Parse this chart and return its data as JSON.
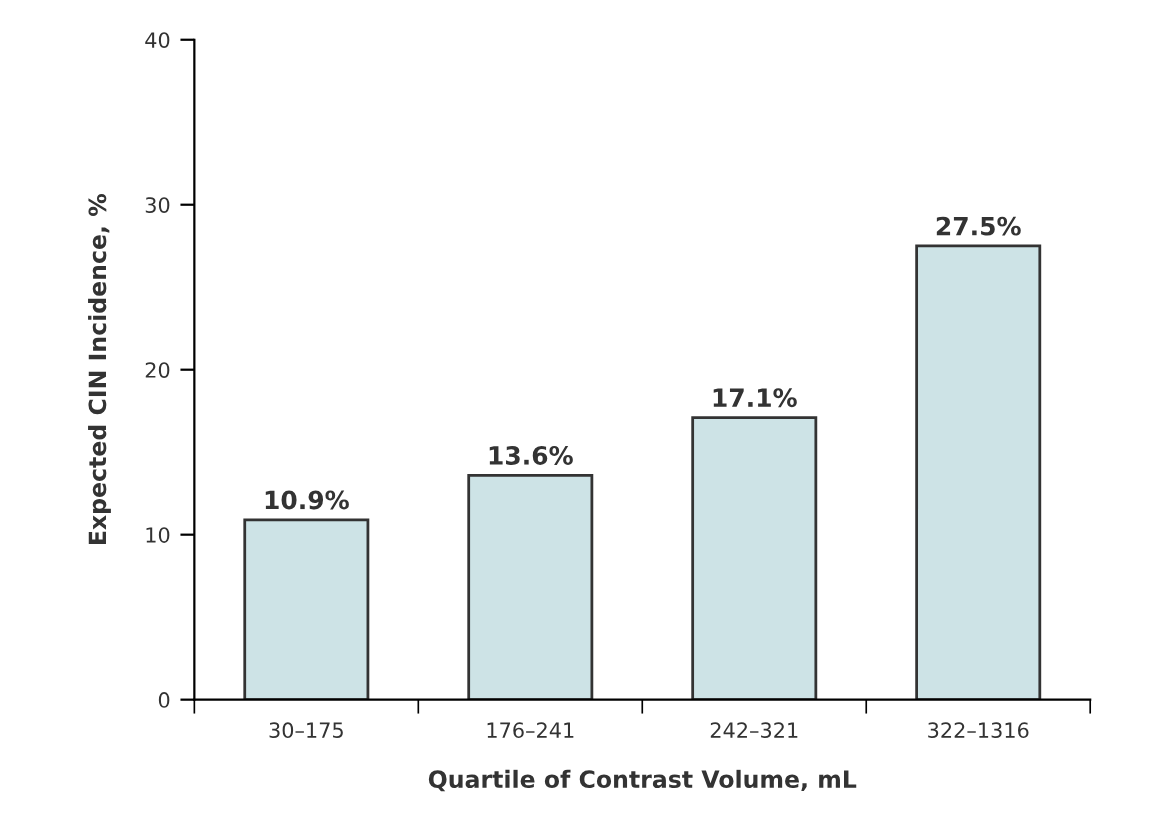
{
  "chart_data": {
    "type": "bar",
    "xlabel": "Quartile of Contrast Volume, mL",
    "ylabel": "Expected CIN Incidence, %",
    "categories": [
      "30–175",
      "176–241",
      "242–321",
      "322–1316"
    ],
    "values": [
      10.9,
      13.6,
      17.1,
      27.5
    ],
    "value_labels": [
      "10.9%",
      "13.6%",
      "17.1%",
      "27.5%"
    ],
    "color": "#cde3e6",
    "ylim": [
      0,
      40
    ],
    "yticks": [
      0,
      10,
      20,
      30,
      40
    ],
    "grid": false,
    "legend": false
  }
}
